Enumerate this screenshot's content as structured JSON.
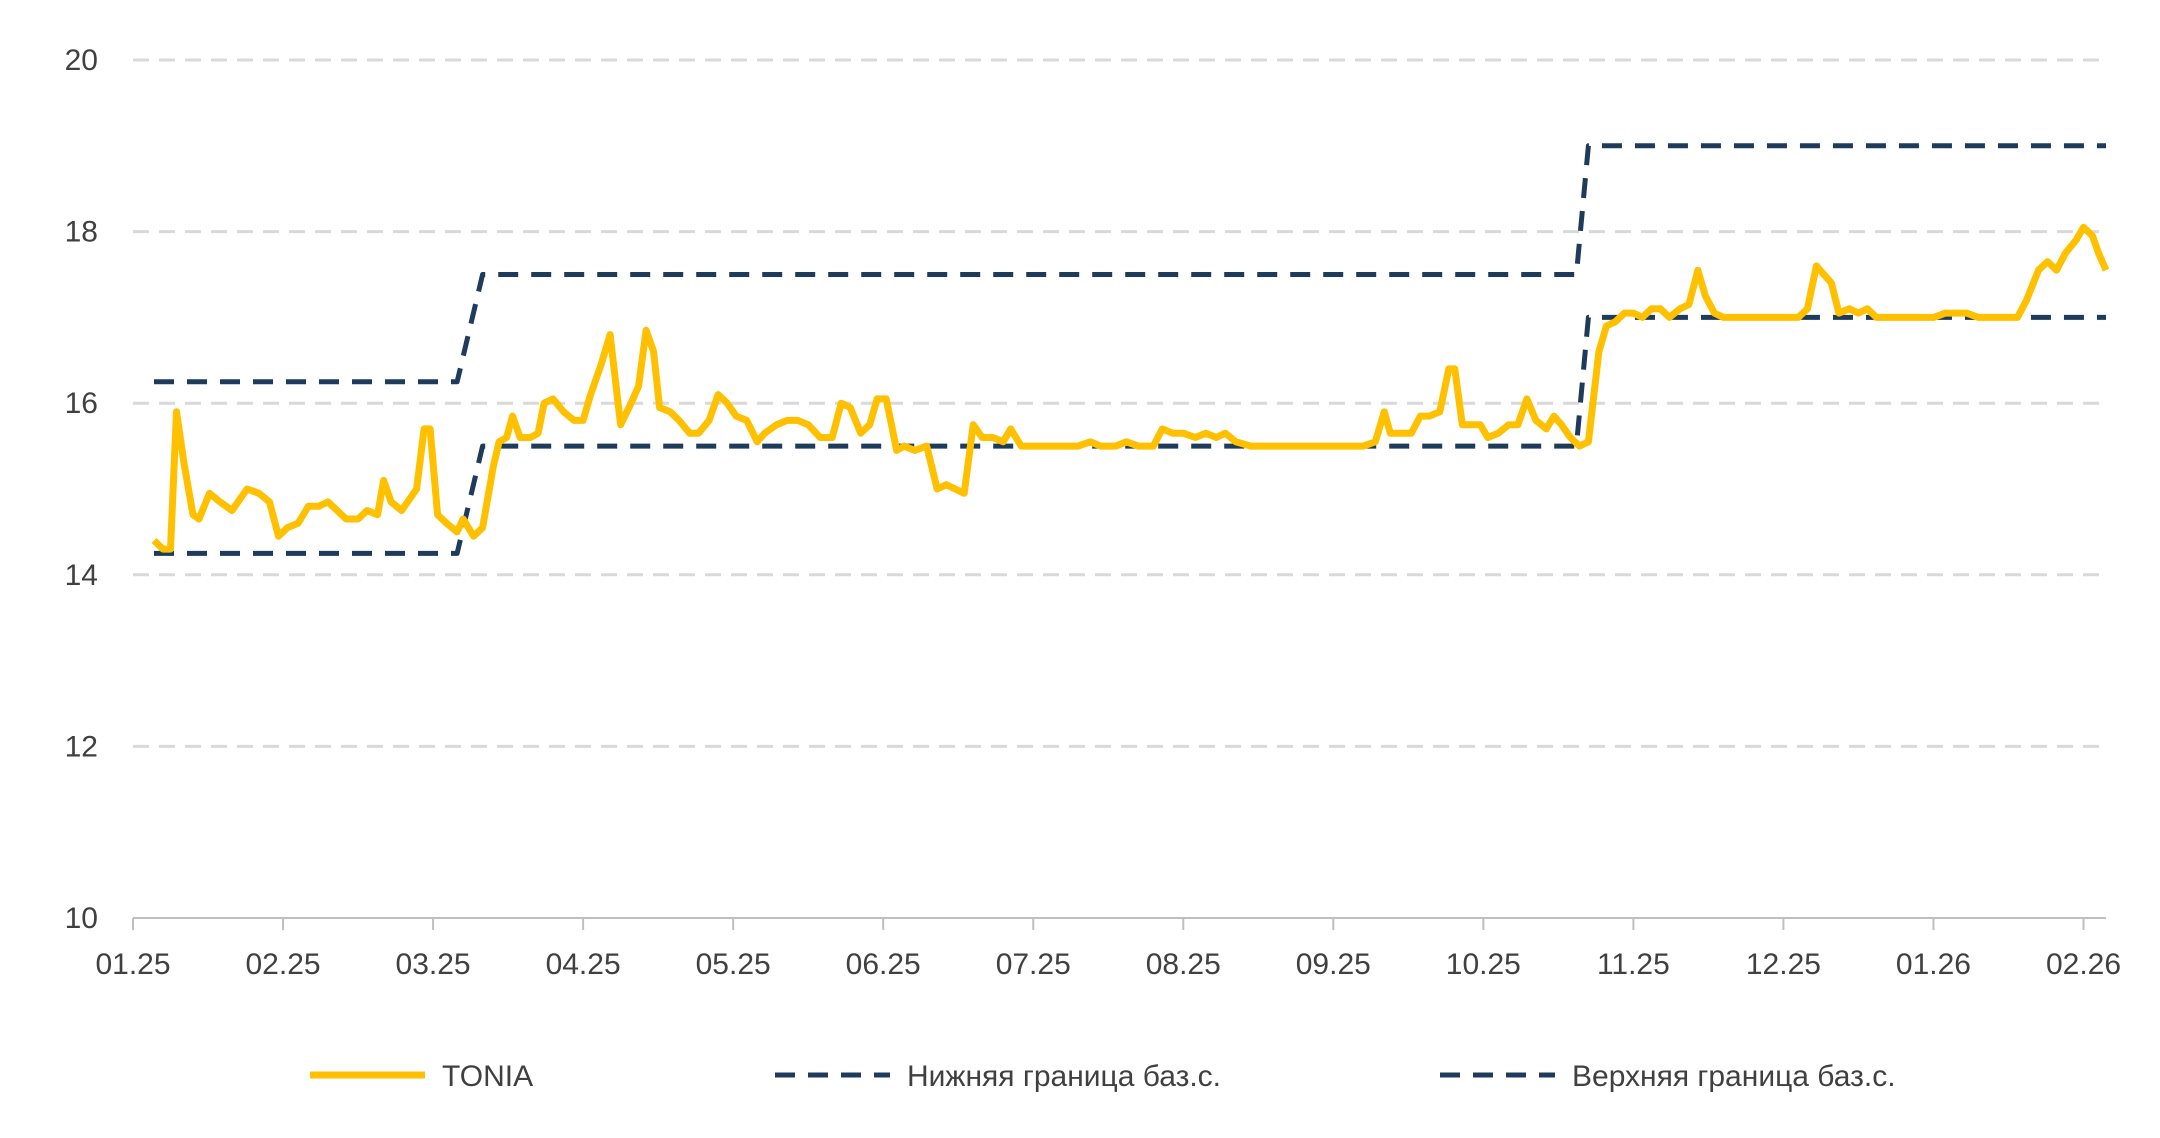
{
  "chart_data": {
    "type": "line",
    "title": "",
    "xlabel": "",
    "ylabel": "",
    "ylim": [
      10,
      20
    ],
    "yticks": [
      10,
      12,
      14,
      16,
      18,
      20
    ],
    "xticks": [
      "01.25",
      "02.25",
      "03.25",
      "04.25",
      "05.25",
      "06.25",
      "07.25",
      "08.25",
      "09.25",
      "10.25",
      "11.25",
      "12.25",
      "01.26",
      "02.26"
    ],
    "x_unit": "months since 01.25",
    "xlim": [
      0,
      13.15
    ],
    "grid": true,
    "legend_position": "bottom",
    "colors": {
      "tonia": "#FFC000",
      "bounds": "#1F3B5C",
      "grid": "#D9D9D9",
      "axis": "#BFBFBF"
    },
    "series": [
      {
        "name": "TONIA",
        "style": "solid",
        "points": [
          [
            0.14,
            14.4
          ],
          [
            0.2,
            14.3
          ],
          [
            0.25,
            14.3
          ],
          [
            0.29,
            15.9
          ],
          [
            0.34,
            15.3
          ],
          [
            0.4,
            14.7
          ],
          [
            0.44,
            14.65
          ],
          [
            0.51,
            14.95
          ],
          [
            0.58,
            14.85
          ],
          [
            0.66,
            14.75
          ],
          [
            0.76,
            15.0
          ],
          [
            0.84,
            14.95
          ],
          [
            0.91,
            14.85
          ],
          [
            0.97,
            14.45
          ],
          [
            1.03,
            14.55
          ],
          [
            1.1,
            14.6
          ],
          [
            1.17,
            14.8
          ],
          [
            1.24,
            14.8
          ],
          [
            1.3,
            14.85
          ],
          [
            1.36,
            14.75
          ],
          [
            1.42,
            14.65
          ],
          [
            1.5,
            14.65
          ],
          [
            1.56,
            14.75
          ],
          [
            1.63,
            14.7
          ],
          [
            1.67,
            15.1
          ],
          [
            1.72,
            14.85
          ],
          [
            1.79,
            14.75
          ],
          [
            1.89,
            15.0
          ],
          [
            1.94,
            15.7
          ],
          [
            1.98,
            15.7
          ],
          [
            2.03,
            14.7
          ],
          [
            2.09,
            14.6
          ],
          [
            2.16,
            14.5
          ],
          [
            2.2,
            14.65
          ],
          [
            2.27,
            14.45
          ],
          [
            2.33,
            14.55
          ],
          [
            2.4,
            15.25
          ],
          [
            2.44,
            15.55
          ],
          [
            2.49,
            15.6
          ],
          [
            2.53,
            15.85
          ],
          [
            2.58,
            15.6
          ],
          [
            2.65,
            15.6
          ],
          [
            2.7,
            15.65
          ],
          [
            2.74,
            16.0
          ],
          [
            2.8,
            16.05
          ],
          [
            2.87,
            15.9
          ],
          [
            2.94,
            15.8
          ],
          [
            3.0,
            15.8
          ],
          [
            3.05,
            16.1
          ],
          [
            3.12,
            16.45
          ],
          [
            3.18,
            16.8
          ],
          [
            3.25,
            15.75
          ],
          [
            3.32,
            16.0
          ],
          [
            3.37,
            16.2
          ],
          [
            3.42,
            16.85
          ],
          [
            3.47,
            16.6
          ],
          [
            3.51,
            15.95
          ],
          [
            3.58,
            15.9
          ],
          [
            3.64,
            15.8
          ],
          [
            3.71,
            15.65
          ],
          [
            3.77,
            15.65
          ],
          [
            3.84,
            15.8
          ],
          [
            3.9,
            16.1
          ],
          [
            3.96,
            16.0
          ],
          [
            4.02,
            15.85
          ],
          [
            4.09,
            15.8
          ],
          [
            4.16,
            15.55
          ],
          [
            4.21,
            15.65
          ],
          [
            4.29,
            15.75
          ],
          [
            4.36,
            15.8
          ],
          [
            4.43,
            15.8
          ],
          [
            4.5,
            15.75
          ],
          [
            4.58,
            15.6
          ],
          [
            4.66,
            15.6
          ],
          [
            4.72,
            16.0
          ],
          [
            4.78,
            15.95
          ],
          [
            4.85,
            15.65
          ],
          [
            4.91,
            15.75
          ],
          [
            4.96,
            16.05
          ],
          [
            5.02,
            16.05
          ],
          [
            5.09,
            15.45
          ],
          [
            5.14,
            15.5
          ],
          [
            5.21,
            15.45
          ],
          [
            5.29,
            15.5
          ],
          [
            5.36,
            15.0
          ],
          [
            5.42,
            15.05
          ],
          [
            5.48,
            15.0
          ],
          [
            5.54,
            14.95
          ],
          [
            5.6,
            15.75
          ],
          [
            5.66,
            15.6
          ],
          [
            5.73,
            15.6
          ],
          [
            5.8,
            15.55
          ],
          [
            5.85,
            15.7
          ],
          [
            5.92,
            15.5
          ],
          [
            6.0,
            15.5
          ],
          [
            6.1,
            15.5
          ],
          [
            6.2,
            15.5
          ],
          [
            6.3,
            15.5
          ],
          [
            6.38,
            15.55
          ],
          [
            6.45,
            15.5
          ],
          [
            6.55,
            15.5
          ],
          [
            6.62,
            15.55
          ],
          [
            6.7,
            15.5
          ],
          [
            6.8,
            15.5
          ],
          [
            6.86,
            15.7
          ],
          [
            6.93,
            15.65
          ],
          [
            7.0,
            15.65
          ],
          [
            7.08,
            15.6
          ],
          [
            7.15,
            15.65
          ],
          [
            7.22,
            15.6
          ],
          [
            7.28,
            15.65
          ],
          [
            7.35,
            15.55
          ],
          [
            7.45,
            15.5
          ],
          [
            7.55,
            15.5
          ],
          [
            7.65,
            15.5
          ],
          [
            7.75,
            15.5
          ],
          [
            7.85,
            15.5
          ],
          [
            7.95,
            15.5
          ],
          [
            8.05,
            15.5
          ],
          [
            8.15,
            15.5
          ],
          [
            8.2,
            15.5
          ],
          [
            8.28,
            15.55
          ],
          [
            8.34,
            15.9
          ],
          [
            8.38,
            15.65
          ],
          [
            8.45,
            15.65
          ],
          [
            8.52,
            15.65
          ],
          [
            8.58,
            15.85
          ],
          [
            8.64,
            15.85
          ],
          [
            8.71,
            15.9
          ],
          [
            8.77,
            16.4
          ],
          [
            8.81,
            16.4
          ],
          [
            8.86,
            15.75
          ],
          [
            8.92,
            15.75
          ],
          [
            8.98,
            15.75
          ],
          [
            9.03,
            15.6
          ],
          [
            9.1,
            15.65
          ],
          [
            9.17,
            15.75
          ],
          [
            9.23,
            15.75
          ],
          [
            9.29,
            16.05
          ],
          [
            9.35,
            15.8
          ],
          [
            9.42,
            15.7
          ],
          [
            9.47,
            15.85
          ],
          [
            9.52,
            15.75
          ],
          [
            9.58,
            15.6
          ],
          [
            9.64,
            15.5
          ],
          [
            9.7,
            15.55
          ],
          [
            9.77,
            16.6
          ],
          [
            9.82,
            16.9
          ],
          [
            9.88,
            16.95
          ],
          [
            9.94,
            17.05
          ],
          [
            10.0,
            17.05
          ],
          [
            10.06,
            17.0
          ],
          [
            10.12,
            17.1
          ],
          [
            10.18,
            17.1
          ],
          [
            10.24,
            17.0
          ],
          [
            10.31,
            17.1
          ],
          [
            10.37,
            17.15
          ],
          [
            10.43,
            17.55
          ],
          [
            10.48,
            17.25
          ],
          [
            10.54,
            17.05
          ],
          [
            10.6,
            17.0
          ],
          [
            10.7,
            17.0
          ],
          [
            10.8,
            17.0
          ],
          [
            10.9,
            17.0
          ],
          [
            11.0,
            17.0
          ],
          [
            11.1,
            17.0
          ],
          [
            11.16,
            17.1
          ],
          [
            11.22,
            17.6
          ],
          [
            11.27,
            17.5
          ],
          [
            11.32,
            17.4
          ],
          [
            11.37,
            17.05
          ],
          [
            11.44,
            17.1
          ],
          [
            11.5,
            17.05
          ],
          [
            11.56,
            17.1
          ],
          [
            11.62,
            17.0
          ],
          [
            11.7,
            17.0
          ],
          [
            11.8,
            17.0
          ],
          [
            11.9,
            17.0
          ],
          [
            12.0,
            17.0
          ],
          [
            12.08,
            17.05
          ],
          [
            12.15,
            17.05
          ],
          [
            12.22,
            17.05
          ],
          [
            12.3,
            17.0
          ],
          [
            12.4,
            17.0
          ],
          [
            12.5,
            17.0
          ],
          [
            12.56,
            17.0
          ],
          [
            12.62,
            17.2
          ],
          [
            12.7,
            17.55
          ],
          [
            12.76,
            17.65
          ],
          [
            12.82,
            17.55
          ],
          [
            12.88,
            17.75
          ],
          [
            12.95,
            17.9
          ],
          [
            13.0,
            18.05
          ],
          [
            13.06,
            17.95
          ],
          [
            13.1,
            17.75
          ],
          [
            13.15,
            17.55
          ]
        ]
      },
      {
        "name": "Нижняя граница баз.с.",
        "style": "dashed",
        "points": [
          [
            0.14,
            14.25
          ],
          [
            2.16,
            14.25
          ],
          [
            2.33,
            15.5
          ],
          [
            9.62,
            15.5
          ],
          [
            9.7,
            17.0
          ],
          [
            13.15,
            17.0
          ]
        ]
      },
      {
        "name": "Верхняя граница баз.с.",
        "style": "dashed",
        "points": [
          [
            0.14,
            16.25
          ],
          [
            2.16,
            16.25
          ],
          [
            2.33,
            17.5
          ],
          [
            9.62,
            17.5
          ],
          [
            9.7,
            19.0
          ],
          [
            13.15,
            19.0
          ]
        ]
      }
    ]
  }
}
